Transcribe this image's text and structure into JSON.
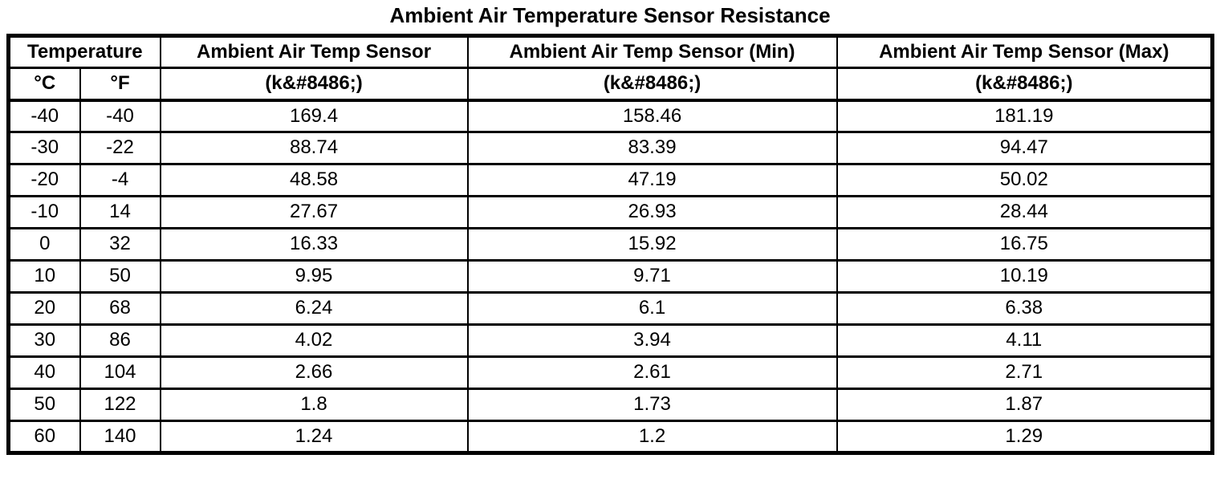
{
  "title": "Ambient Air Temperature Sensor Resistance",
  "table": {
    "header": {
      "temperature_group": "Temperature",
      "celsius": "°C",
      "fahrenheit": "°F",
      "sensor": "Ambient Air Temp Sensor",
      "sensor_min": "Ambient Air Temp Sensor (Min)",
      "sensor_max": "Ambient Air Temp Sensor (Max)",
      "unit": "(k&#8486;)"
    },
    "rows": [
      [
        "-40",
        "-40",
        "169.4",
        "158.46",
        "181.19"
      ],
      [
        "-30",
        "-22",
        "88.74",
        "83.39",
        "94.47"
      ],
      [
        "-20",
        "-4",
        "48.58",
        "47.19",
        "50.02"
      ],
      [
        "-10",
        "14",
        "27.67",
        "26.93",
        "28.44"
      ],
      [
        "0",
        "32",
        "16.33",
        "15.92",
        "16.75"
      ],
      [
        "10",
        "50",
        "9.95",
        "9.71",
        "10.19"
      ],
      [
        "20",
        "68",
        "6.24",
        "6.1",
        "6.38"
      ],
      [
        "30",
        "86",
        "4.02",
        "3.94",
        "4.11"
      ],
      [
        "40",
        "104",
        "2.66",
        "2.61",
        "2.71"
      ],
      [
        "50",
        "122",
        "1.8",
        "1.73",
        "1.87"
      ],
      [
        "60",
        "140",
        "1.24",
        "1.2",
        "1.29"
      ]
    ],
    "cell_names": [
      "cell-temp-celsius",
      "cell-temp-fahrenheit",
      "cell-resistance-nominal",
      "cell-resistance-min",
      "cell-resistance-max"
    ]
  },
  "colors": {
    "border": "#000000",
    "text": "#000000",
    "background": "#ffffff"
  }
}
